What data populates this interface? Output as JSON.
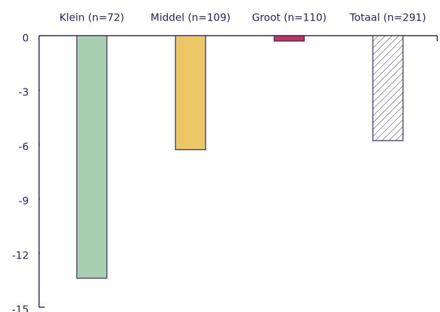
{
  "chart_data": {
    "type": "bar",
    "categories": [
      "Klein (n=72)",
      "Middel (n=109)",
      "Groot (n=110)",
      "Totaal (n=291)"
    ],
    "values": [
      -13.4,
      -6.3,
      -0.3,
      -5.8
    ],
    "colors": [
      "#a8cfb0",
      "#ebc865",
      "#c0355a",
      "#ffffff"
    ],
    "hatch": [
      false,
      false,
      false,
      true
    ],
    "ylim": [
      -15,
      0
    ],
    "yticks": [
      0,
      -3,
      -6,
      -9,
      -12,
      -15
    ],
    "grid": false
  }
}
